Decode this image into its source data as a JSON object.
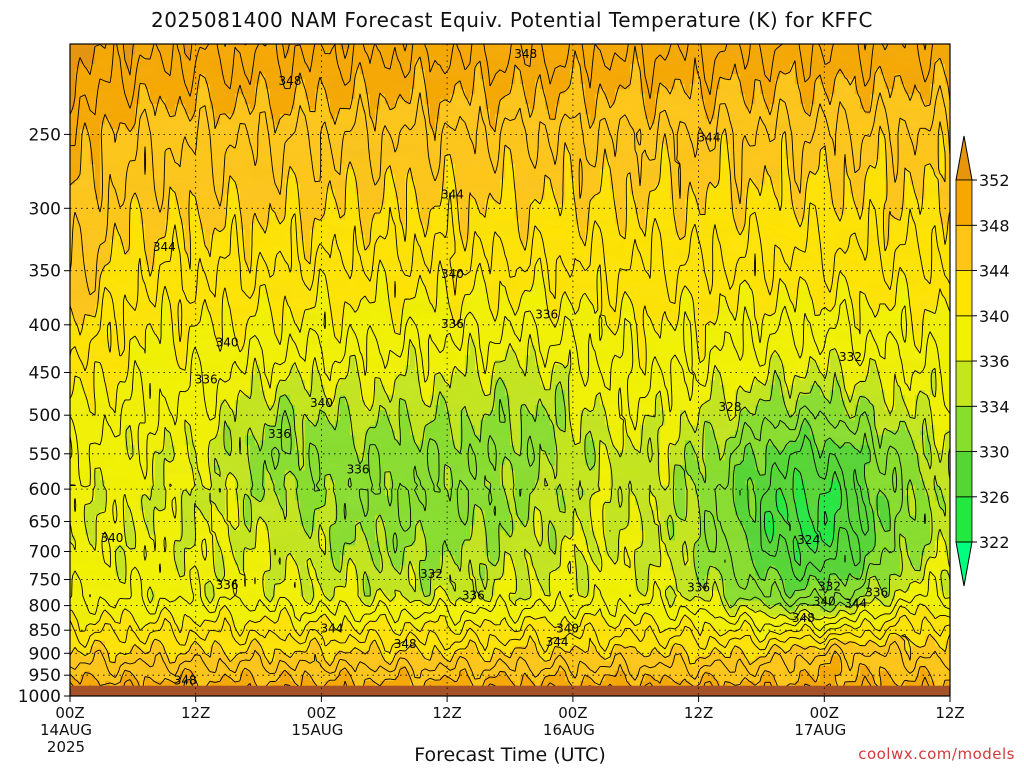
{
  "title": "2025081400 NAM Forecast Equiv. Potential Temperature (K) for KFFC",
  "credit": "coolwx.com/models",
  "chart_data": {
    "type": "heatmap",
    "title": "2025081400 NAM Forecast Equiv. Potential Temperature (K) for KFFC",
    "xlabel": "Forecast Time (UTC)",
    "ylabel": "",
    "x_ticks": [
      {
        "hour": 0,
        "lines": [
          "00Z",
          "14AUG",
          "2025"
        ]
      },
      {
        "hour": 12,
        "lines": [
          "12Z"
        ]
      },
      {
        "hour": 24,
        "lines": [
          "00Z",
          "15AUG"
        ]
      },
      {
        "hour": 36,
        "lines": [
          "12Z"
        ]
      },
      {
        "hour": 48,
        "lines": [
          "00Z",
          "16AUG"
        ]
      },
      {
        "hour": 60,
        "lines": [
          "12Z"
        ]
      },
      {
        "hour": 72,
        "lines": [
          "00Z",
          "17AUG"
        ]
      },
      {
        "hour": 84,
        "lines": [
          "12Z"
        ]
      }
    ],
    "xlim": [
      0,
      84
    ],
    "y_scale": "log-pressure",
    "y_ticks": [
      250,
      300,
      350,
      400,
      450,
      500,
      550,
      600,
      650,
      700,
      750,
      800,
      850,
      900,
      950,
      1000
    ],
    "ylim": [
      1000,
      200
    ],
    "grid": true,
    "colorbar": {
      "levels": [
        322,
        326,
        330,
        334,
        336,
        340,
        344,
        348,
        352
      ],
      "colors": [
        "#00ff7f",
        "#22e83f",
        "#55d634",
        "#88de2c",
        "#c4e61c",
        "#f2f200",
        "#ffe400",
        "#ffc617",
        "#f7a800",
        "#e8950e"
      ],
      "extend": "both"
    },
    "surface_below_pressure": 975,
    "surface_color": "#a65229",
    "contour_labels": [
      {
        "hour": 43.5,
        "p": 205,
        "v": "348"
      },
      {
        "hour": 21.0,
        "p": 219,
        "v": "348"
      },
      {
        "hour": 61.0,
        "p": 252,
        "v": "344"
      },
      {
        "hour": 36.5,
        "p": 290,
        "v": "344"
      },
      {
        "hour": 9.0,
        "p": 330,
        "v": "344"
      },
      {
        "hour": 36.5,
        "p": 353,
        "v": "340"
      },
      {
        "hour": 45.5,
        "p": 390,
        "v": "336"
      },
      {
        "hour": 36.5,
        "p": 399,
        "v": "336"
      },
      {
        "hour": 15.0,
        "p": 418,
        "v": "340"
      },
      {
        "hour": 13.0,
        "p": 458,
        "v": "336"
      },
      {
        "hour": 74.5,
        "p": 433,
        "v": "332"
      },
      {
        "hour": 63.0,
        "p": 490,
        "v": "328"
      },
      {
        "hour": 24.0,
        "p": 485,
        "v": "340"
      },
      {
        "hour": 20.0,
        "p": 524,
        "v": "336"
      },
      {
        "hour": 27.5,
        "p": 572,
        "v": "336"
      },
      {
        "hour": 4.0,
        "p": 677,
        "v": "340"
      },
      {
        "hour": 70.5,
        "p": 680,
        "v": "324"
      },
      {
        "hour": 34.5,
        "p": 740,
        "v": "332"
      },
      {
        "hour": 15.0,
        "p": 760,
        "v": "336"
      },
      {
        "hour": 38.5,
        "p": 780,
        "v": "336"
      },
      {
        "hour": 60.0,
        "p": 765,
        "v": "336"
      },
      {
        "hour": 72.5,
        "p": 763,
        "v": "332"
      },
      {
        "hour": 72.0,
        "p": 792,
        "v": "340"
      },
      {
        "hour": 75.0,
        "p": 796,
        "v": "344"
      },
      {
        "hour": 77.0,
        "p": 775,
        "v": "336"
      },
      {
        "hour": 70.0,
        "p": 825,
        "v": "348"
      },
      {
        "hour": 25.0,
        "p": 847,
        "v": "344"
      },
      {
        "hour": 47.5,
        "p": 846,
        "v": "340"
      },
      {
        "hour": 46.5,
        "p": 875,
        "v": "344"
      },
      {
        "hour": 32.0,
        "p": 880,
        "v": "348"
      },
      {
        "hour": 11.0,
        "p": 962,
        "v": "348"
      }
    ]
  }
}
